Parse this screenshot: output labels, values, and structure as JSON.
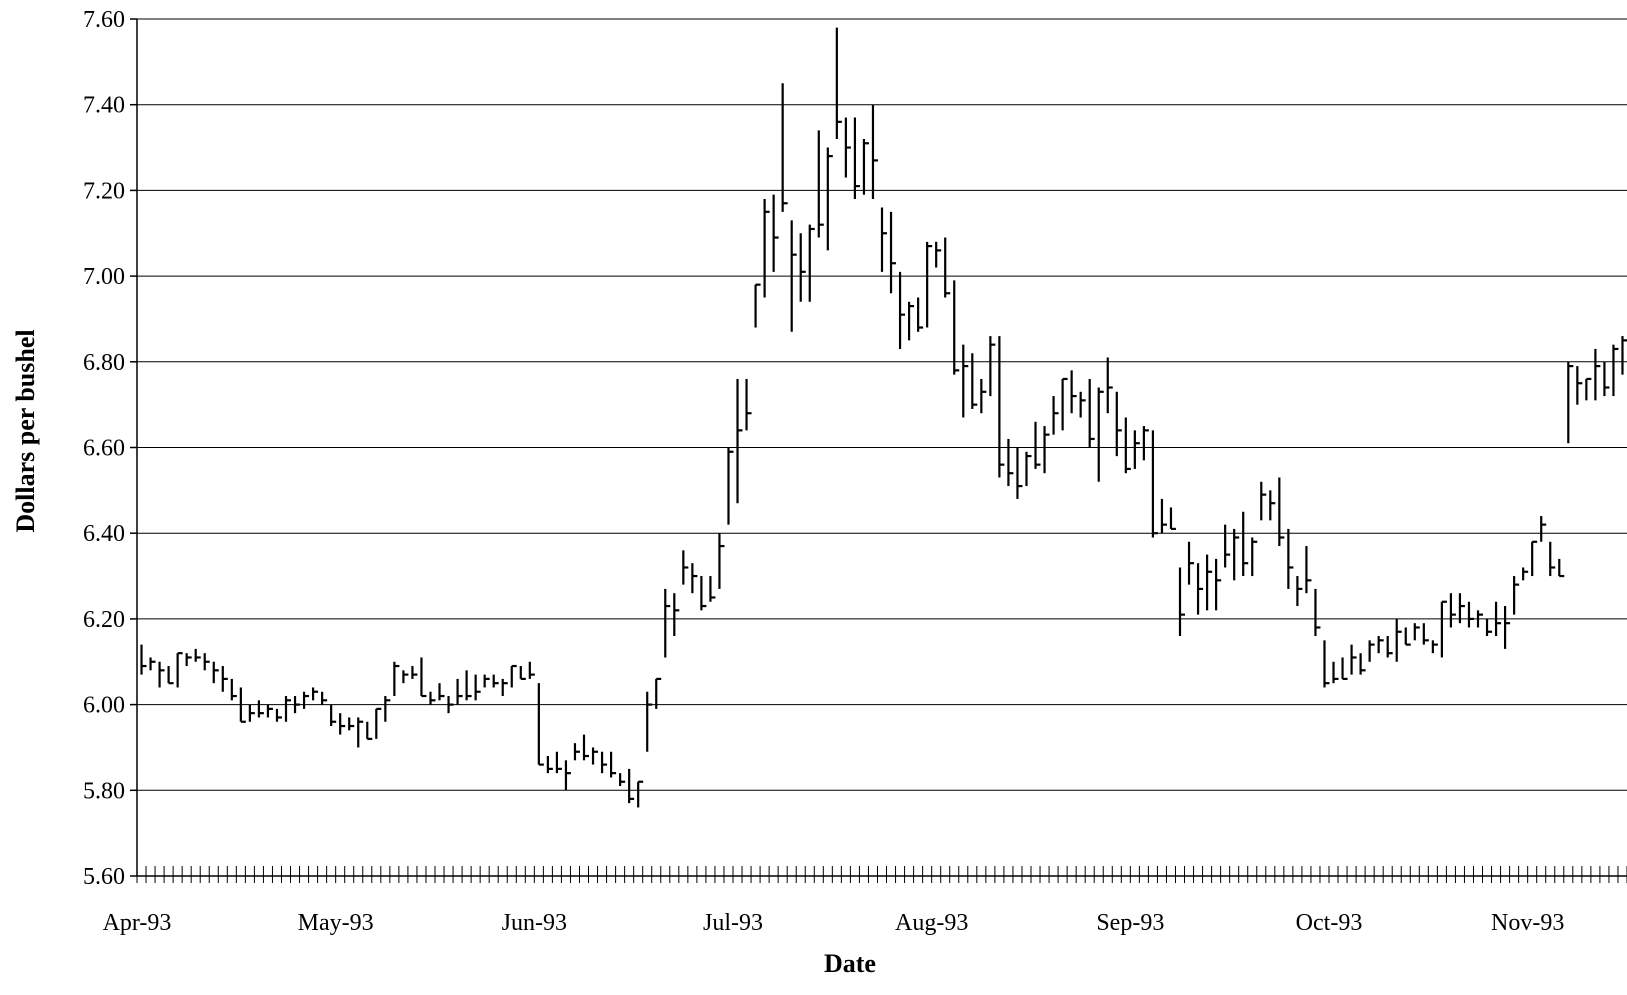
{
  "chart_data": {
    "type": "ohlc",
    "title": "",
    "xlabel": "Date",
    "ylabel": "Dollars per bushel",
    "ylim": [
      5.6,
      7.6
    ],
    "yticks": [
      "5.60",
      "5.80",
      "6.00",
      "6.20",
      "6.40",
      "6.60",
      "6.80",
      "7.00",
      "7.20",
      "7.40",
      "7.60"
    ],
    "xtick_labels": [
      "Apr-93",
      "May-93",
      "Jun-93",
      "Jul-93",
      "Aug-93",
      "Sep-93",
      "Oct-93",
      "Nov-93"
    ],
    "grid": "horizontal",
    "legend": "none",
    "series_color": "#000000",
    "series": [
      {
        "values": [
          {
            "h": 6.14,
            "l": 6.07,
            "c": 6.09
          },
          {
            "h": 6.11,
            "l": 6.08,
            "c": 6.1
          },
          {
            "h": 6.1,
            "l": 6.04,
            "c": 6.08
          },
          {
            "h": 6.09,
            "l": 6.05,
            "c": 6.05
          },
          {
            "h": 6.12,
            "l": 6.04,
            "c": 6.12
          },
          {
            "h": 6.12,
            "l": 6.09,
            "c": 6.11
          },
          {
            "h": 6.13,
            "l": 6.1,
            "c": 6.11
          },
          {
            "h": 6.12,
            "l": 6.08,
            "c": 6.1
          },
          {
            "h": 6.1,
            "l": 6.05,
            "c": 6.08
          },
          {
            "h": 6.09,
            "l": 6.03,
            "c": 6.06
          },
          {
            "h": 6.06,
            "l": 6.01,
            "c": 6.02
          },
          {
            "h": 6.04,
            "l": 5.96,
            "c": 5.96
          },
          {
            "h": 6.0,
            "l": 5.96,
            "c": 5.98
          },
          {
            "h": 6.01,
            "l": 5.97,
            "c": 5.98
          },
          {
            "h": 6.0,
            "l": 5.97,
            "c": 5.99
          },
          {
            "h": 5.99,
            "l": 5.96,
            "c": 5.97
          },
          {
            "h": 6.02,
            "l": 5.96,
            "c": 6.01
          },
          {
            "h": 6.02,
            "l": 5.98,
            "c": 6.0
          },
          {
            "h": 6.03,
            "l": 5.99,
            "c": 6.02
          },
          {
            "h": 6.04,
            "l": 6.01,
            "c": 6.03
          },
          {
            "h": 6.03,
            "l": 6.0,
            "c": 6.01
          },
          {
            "h": 6.0,
            "l": 5.95,
            "c": 5.96
          },
          {
            "h": 5.98,
            "l": 5.93,
            "c": 5.95
          },
          {
            "h": 5.97,
            "l": 5.94,
            "c": 5.95
          },
          {
            "h": 5.97,
            "l": 5.9,
            "c": 5.96
          },
          {
            "h": 5.96,
            "l": 5.92,
            "c": 5.92
          },
          {
            "h": 5.99,
            "l": 5.92,
            "c": 5.99
          },
          {
            "h": 6.02,
            "l": 5.96,
            "c": 6.01
          },
          {
            "h": 6.1,
            "l": 6.02,
            "c": 6.09
          },
          {
            "h": 6.08,
            "l": 6.05,
            "c": 6.07
          },
          {
            "h": 6.09,
            "l": 6.06,
            "c": 6.07
          },
          {
            "h": 6.11,
            "l": 6.02,
            "c": 6.02
          },
          {
            "h": 6.03,
            "l": 6.0,
            "c": 6.01
          },
          {
            "h": 6.05,
            "l": 6.01,
            "c": 6.02
          },
          {
            "h": 6.02,
            "l": 5.98,
            "c": 6.0
          },
          {
            "h": 6.06,
            "l": 6.0,
            "c": 6.02
          },
          {
            "h": 6.08,
            "l": 6.01,
            "c": 6.02
          },
          {
            "h": 6.07,
            "l": 6.01,
            "c": 6.03
          },
          {
            "h": 6.07,
            "l": 6.04,
            "c": 6.06
          },
          {
            "h": 6.07,
            "l": 6.04,
            "c": 6.05
          },
          {
            "h": 6.06,
            "l": 6.02,
            "c": 6.05
          },
          {
            "h": 6.09,
            "l": 6.04,
            "c": 6.09
          },
          {
            "h": 6.09,
            "l": 6.06,
            "c": 6.06
          },
          {
            "h": 6.1,
            "l": 6.06,
            "c": 6.07
          },
          {
            "h": 6.05,
            "l": 5.86,
            "c": 5.86
          },
          {
            "h": 5.88,
            "l": 5.84,
            "c": 5.85
          },
          {
            "h": 5.89,
            "l": 5.84,
            "c": 5.85
          },
          {
            "h": 5.87,
            "l": 5.8,
            "c": 5.84
          },
          {
            "h": 5.91,
            "l": 5.87,
            "c": 5.89
          },
          {
            "h": 5.93,
            "l": 5.87,
            "c": 5.88
          },
          {
            "h": 5.9,
            "l": 5.86,
            "c": 5.89
          },
          {
            "h": 5.89,
            "l": 5.84,
            "c": 5.86
          },
          {
            "h": 5.89,
            "l": 5.83,
            "c": 5.84
          },
          {
            "h": 5.84,
            "l": 5.81,
            "c": 5.82
          },
          {
            "h": 5.85,
            "l": 5.77,
            "c": 5.78
          },
          {
            "h": 5.82,
            "l": 5.76,
            "c": 5.82
          },
          {
            "h": 6.03,
            "l": 5.89,
            "c": 6.0
          },
          {
            "h": 6.06,
            "l": 5.99,
            "c": 6.06
          },
          {
            "h": 6.27,
            "l": 6.11,
            "c": 6.23
          },
          {
            "h": 6.26,
            "l": 6.16,
            "c": 6.22
          },
          {
            "h": 6.36,
            "l": 6.28,
            "c": 6.32
          },
          {
            "h": 6.33,
            "l": 6.26,
            "c": 6.3
          },
          {
            "h": 6.3,
            "l": 6.22,
            "c": 6.23
          },
          {
            "h": 6.3,
            "l": 6.24,
            "c": 6.25
          },
          {
            "h": 6.4,
            "l": 6.27,
            "c": 6.37
          },
          {
            "h": 6.6,
            "l": 6.42,
            "c": 6.59
          },
          {
            "h": 6.76,
            "l": 6.47,
            "c": 6.64
          },
          {
            "h": 6.76,
            "l": 6.64,
            "c": 6.68
          },
          {
            "h": 6.98,
            "l": 6.88,
            "c": 6.98
          },
          {
            "h": 7.18,
            "l": 6.95,
            "c": 7.15
          },
          {
            "h": 7.19,
            "l": 7.01,
            "c": 7.09
          },
          {
            "h": 7.45,
            "l": 7.15,
            "c": 7.17
          },
          {
            "h": 7.13,
            "l": 6.87,
            "c": 7.05
          },
          {
            "h": 7.1,
            "l": 6.94,
            "c": 7.01
          },
          {
            "h": 7.12,
            "l": 6.94,
            "c": 7.11
          },
          {
            "h": 7.34,
            "l": 7.09,
            "c": 7.12
          },
          {
            "h": 7.3,
            "l": 7.06,
            "c": 7.28
          },
          {
            "h": 7.58,
            "l": 7.32,
            "c": 7.36
          },
          {
            "h": 7.37,
            "l": 7.23,
            "c": 7.3
          },
          {
            "h": 7.37,
            "l": 7.18,
            "c": 7.21
          },
          {
            "h": 7.32,
            "l": 7.19,
            "c": 7.31
          },
          {
            "h": 7.4,
            "l": 7.18,
            "c": 7.27
          },
          {
            "h": 7.16,
            "l": 7.01,
            "c": 7.1
          },
          {
            "h": 7.15,
            "l": 6.96,
            "c": 7.03
          },
          {
            "h": 7.01,
            "l": 6.83,
            "c": 6.91
          },
          {
            "h": 6.94,
            "l": 6.85,
            "c": 6.93
          },
          {
            "h": 6.95,
            "l": 6.87,
            "c": 6.88
          },
          {
            "h": 7.08,
            "l": 6.88,
            "c": 7.07
          },
          {
            "h": 7.08,
            "l": 7.02,
            "c": 7.06
          },
          {
            "h": 7.09,
            "l": 6.95,
            "c": 6.96
          },
          {
            "h": 6.99,
            "l": 6.77,
            "c": 6.78
          },
          {
            "h": 6.84,
            "l": 6.67,
            "c": 6.79
          },
          {
            "h": 6.82,
            "l": 6.69,
            "c": 6.7
          },
          {
            "h": 6.76,
            "l": 6.68,
            "c": 6.73
          },
          {
            "h": 6.86,
            "l": 6.72,
            "c": 6.84
          },
          {
            "h": 6.86,
            "l": 6.53,
            "c": 6.56
          },
          {
            "h": 6.62,
            "l": 6.51,
            "c": 6.54
          },
          {
            "h": 6.6,
            "l": 6.48,
            "c": 6.51
          },
          {
            "h": 6.59,
            "l": 6.51,
            "c": 6.58
          },
          {
            "h": 6.66,
            "l": 6.55,
            "c": 6.56
          },
          {
            "h": 6.65,
            "l": 6.54,
            "c": 6.63
          },
          {
            "h": 6.72,
            "l": 6.63,
            "c": 6.68
          },
          {
            "h": 6.76,
            "l": 6.64,
            "c": 6.76
          },
          {
            "h": 6.78,
            "l": 6.68,
            "c": 6.72
          },
          {
            "h": 6.73,
            "l": 6.67,
            "c": 6.71
          },
          {
            "h": 6.76,
            "l": 6.6,
            "c": 6.62
          },
          {
            "h": 6.74,
            "l": 6.52,
            "c": 6.73
          },
          {
            "h": 6.81,
            "l": 6.68,
            "c": 6.74
          },
          {
            "h": 6.73,
            "l": 6.58,
            "c": 6.64
          },
          {
            "h": 6.67,
            "l": 6.54,
            "c": 6.55
          },
          {
            "h": 6.64,
            "l": 6.55,
            "c": 6.61
          },
          {
            "h": 6.65,
            "l": 6.57,
            "c": 6.64
          },
          {
            "h": 6.64,
            "l": 6.39,
            "c": 6.4
          },
          {
            "h": 6.48,
            "l": 6.4,
            "c": 6.42
          },
          {
            "h": 6.46,
            "l": 6.41,
            "c": 6.41
          },
          {
            "h": 6.32,
            "l": 6.16,
            "c": 6.21
          },
          {
            "h": 6.38,
            "l": 6.28,
            "c": 6.33
          },
          {
            "h": 6.33,
            "l": 6.21,
            "c": 6.27
          },
          {
            "h": 6.35,
            "l": 6.22,
            "c": 6.31
          },
          {
            "h": 6.34,
            "l": 6.22,
            "c": 6.29
          },
          {
            "h": 6.42,
            "l": 6.32,
            "c": 6.35
          },
          {
            "h": 6.41,
            "l": 6.29,
            "c": 6.39
          },
          {
            "h": 6.45,
            "l": 6.3,
            "c": 6.33
          },
          {
            "h": 6.39,
            "l": 6.3,
            "c": 6.38
          },
          {
            "h": 6.52,
            "l": 6.43,
            "c": 6.49
          },
          {
            "h": 6.5,
            "l": 6.43,
            "c": 6.47
          },
          {
            "h": 6.53,
            "l": 6.37,
            "c": 6.39
          },
          {
            "h": 6.41,
            "l": 6.27,
            "c": 6.32
          },
          {
            "h": 6.3,
            "l": 6.23,
            "c": 6.27
          },
          {
            "h": 6.37,
            "l": 6.26,
            "c": 6.29
          },
          {
            "h": 6.27,
            "l": 6.16,
            "c": 6.18
          },
          {
            "h": 6.15,
            "l": 6.04,
            "c": 6.05
          },
          {
            "h": 6.1,
            "l": 6.05,
            "c": 6.06
          },
          {
            "h": 6.11,
            "l": 6.06,
            "c": 6.06
          },
          {
            "h": 6.14,
            "l": 6.07,
            "c": 6.11
          },
          {
            "h": 6.12,
            "l": 6.07,
            "c": 6.08
          },
          {
            "h": 6.15,
            "l": 6.1,
            "c": 6.14
          },
          {
            "h": 6.16,
            "l": 6.12,
            "c": 6.15
          },
          {
            "h": 6.16,
            "l": 6.11,
            "c": 6.12
          },
          {
            "h": 6.2,
            "l": 6.1,
            "c": 6.17
          },
          {
            "h": 6.18,
            "l": 6.14,
            "c": 6.14
          },
          {
            "h": 6.19,
            "l": 6.15,
            "c": 6.18
          },
          {
            "h": 6.19,
            "l": 6.14,
            "c": 6.15
          },
          {
            "h": 6.15,
            "l": 6.12,
            "c": 6.14
          },
          {
            "h": 6.24,
            "l": 6.11,
            "c": 6.24
          },
          {
            "h": 6.26,
            "l": 6.18,
            "c": 6.21
          },
          {
            "h": 6.26,
            "l": 6.19,
            "c": 6.23
          },
          {
            "h": 6.24,
            "l": 6.18,
            "c": 6.2
          },
          {
            "h": 6.22,
            "l": 6.18,
            "c": 6.21
          },
          {
            "h": 6.2,
            "l": 6.16,
            "c": 6.17
          },
          {
            "h": 6.24,
            "l": 6.16,
            "c": 6.19
          },
          {
            "h": 6.23,
            "l": 6.13,
            "c": 6.19
          },
          {
            "h": 6.3,
            "l": 6.21,
            "c": 6.28
          },
          {
            "h": 6.32,
            "l": 6.29,
            "c": 6.31
          },
          {
            "h": 6.38,
            "l": 6.3,
            "c": 6.38
          },
          {
            "h": 6.44,
            "l": 6.38,
            "c": 6.42
          },
          {
            "h": 6.38,
            "l": 6.3,
            "c": 6.32
          },
          {
            "h": 6.34,
            "l": 6.3,
            "c": 6.3
          },
          {
            "h": 6.8,
            "l": 6.61,
            "c": 6.79
          },
          {
            "h": 6.79,
            "l": 6.7,
            "c": 6.75
          },
          {
            "h": 6.76,
            "l": 6.71,
            "c": 6.76
          },
          {
            "h": 6.83,
            "l": 6.71,
            "c": 6.79
          },
          {
            "h": 6.8,
            "l": 6.72,
            "c": 6.74
          },
          {
            "h": 6.84,
            "l": 6.72,
            "c": 6.83
          },
          {
            "h": 6.86,
            "l": 6.77,
            "c": 6.85
          }
        ]
      }
    ]
  }
}
